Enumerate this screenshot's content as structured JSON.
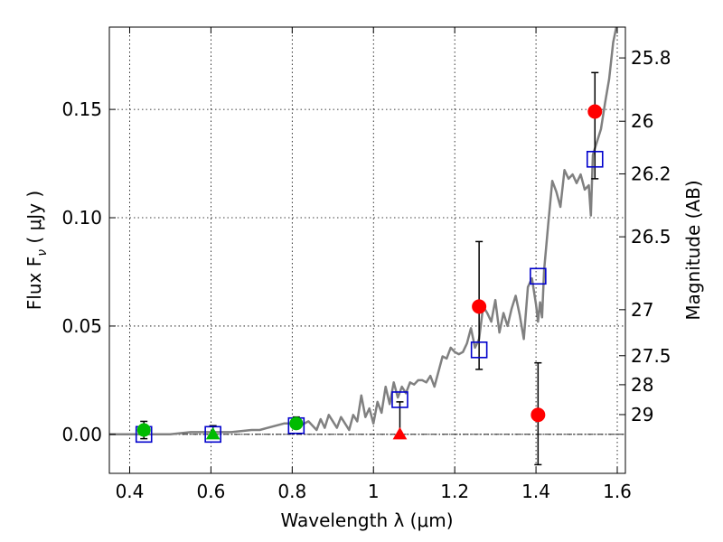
{
  "chart_data": {
    "type": "scatter",
    "xlabel": "Wavelength  λ (μm)",
    "ylabel": "Flux  F",
    "ylabel_sub": "ν",
    "ylabel_unit": " ( μJy )",
    "y2label": "Magnitude (AB)",
    "xlim": [
      0.35,
      1.62
    ],
    "ylim": [
      -0.018,
      0.188
    ],
    "grid": true,
    "x_ticks": [
      {
        "value": 0.4,
        "label": "0.4"
      },
      {
        "value": 0.6,
        "label": "0.6"
      },
      {
        "value": 0.8,
        "label": "0.8"
      },
      {
        "value": 1.0,
        "label": "1"
      },
      {
        "value": 1.2,
        "label": "1.2"
      },
      {
        "value": 1.4,
        "label": "1.4"
      },
      {
        "value": 1.6,
        "label": "1.6"
      }
    ],
    "y_ticks": [
      {
        "value": 0.0,
        "label": "0.00"
      },
      {
        "value": 0.05,
        "label": "0.05"
      },
      {
        "value": 0.1,
        "label": "0.10"
      },
      {
        "value": 0.15,
        "label": "0.15"
      }
    ],
    "y2_ticks": [
      {
        "label": "25.8",
        "mag": 25.8
      },
      {
        "label": "26",
        "mag": 26.0
      },
      {
        "label": "26.2",
        "mag": 26.2
      },
      {
        "label": "26.5",
        "mag": 26.5
      },
      {
        "label": "27",
        "mag": 27.0
      },
      {
        "label": "27.5",
        "mag": 27.5
      },
      {
        "label": "28",
        "mag": 28.0
      },
      {
        "label": "29",
        "mag": 29.0
      }
    ],
    "colors": {
      "model": "#808080",
      "observed": "#ff0000",
      "optical": "#00bb00",
      "synthetic": "#0000cc",
      "errorbar": "#000000"
    },
    "model_spectrum": {
      "x": [
        0.35,
        0.4,
        0.45,
        0.5,
        0.55,
        0.6,
        0.65,
        0.7,
        0.72,
        0.74,
        0.76,
        0.78,
        0.8,
        0.82,
        0.84,
        0.86,
        0.87,
        0.88,
        0.89,
        0.9,
        0.91,
        0.92,
        0.93,
        0.94,
        0.95,
        0.96,
        0.97,
        0.98,
        0.99,
        1.0,
        1.01,
        1.02,
        1.03,
        1.04,
        1.05,
        1.06,
        1.07,
        1.08,
        1.09,
        1.1,
        1.11,
        1.12,
        1.13,
        1.14,
        1.15,
        1.16,
        1.17,
        1.18,
        1.19,
        1.2,
        1.21,
        1.22,
        1.23,
        1.24,
        1.25,
        1.26,
        1.27,
        1.28,
        1.29,
        1.3,
        1.31,
        1.32,
        1.33,
        1.34,
        1.35,
        1.36,
        1.37,
        1.38,
        1.39,
        1.4,
        1.405,
        1.41,
        1.415,
        1.42,
        1.43,
        1.44,
        1.45,
        1.46,
        1.47,
        1.48,
        1.49,
        1.5,
        1.51,
        1.52,
        1.53,
        1.535,
        1.54,
        1.55,
        1.56,
        1.57,
        1.58,
        1.59,
        1.6
      ],
      "y": [
        0.0,
        0.0,
        0.0,
        0.0,
        0.001,
        0.001,
        0.001,
        0.002,
        0.002,
        0.003,
        0.004,
        0.005,
        0.005,
        0.004,
        0.006,
        0.002,
        0.007,
        0.003,
        0.009,
        0.006,
        0.003,
        0.008,
        0.005,
        0.002,
        0.009,
        0.006,
        0.018,
        0.008,
        0.012,
        0.005,
        0.015,
        0.01,
        0.022,
        0.014,
        0.024,
        0.017,
        0.022,
        0.019,
        0.024,
        0.023,
        0.025,
        0.025,
        0.024,
        0.027,
        0.022,
        0.029,
        0.036,
        0.035,
        0.04,
        0.038,
        0.037,
        0.038,
        0.042,
        0.049,
        0.04,
        0.044,
        0.059,
        0.056,
        0.052,
        0.062,
        0.047,
        0.056,
        0.05,
        0.058,
        0.064,
        0.055,
        0.044,
        0.068,
        0.072,
        0.06,
        0.052,
        0.061,
        0.054,
        0.076,
        0.097,
        0.117,
        0.112,
        0.105,
        0.122,
        0.118,
        0.12,
        0.116,
        0.12,
        0.113,
        0.115,
        0.101,
        0.129,
        0.135,
        0.141,
        0.153,
        0.164,
        0.181,
        0.19
      ]
    },
    "observed_detections": [
      {
        "x": 1.26,
        "y": 0.059,
        "yerr_low": 0.029,
        "yerr_high": 0.03
      },
      {
        "x": 1.405,
        "y": 0.009,
        "yerr_low": 0.023,
        "yerr_high": 0.024
      },
      {
        "x": 1.545,
        "y": 0.149,
        "yerr_low": 0.031,
        "yerr_high": 0.018
      }
    ],
    "observed_upper_limits": [
      {
        "x": 1.065,
        "y": 0.0,
        "yerr_high": 0.015
      }
    ],
    "optical_detections": [
      {
        "x": 0.435,
        "y": 0.002,
        "yerr_low": 0.004,
        "yerr_high": 0.004
      },
      {
        "x": 0.81,
        "y": 0.005,
        "yerr_low": 0.002,
        "yerr_high": 0.003
      }
    ],
    "optical_upper_limits": [
      {
        "x": 0.605,
        "y": 0.0,
        "yerr_high": 0.004
      }
    ],
    "synthetic_photometry": [
      {
        "x": 0.435,
        "y": 0.0
      },
      {
        "x": 0.605,
        "y": 0.0
      },
      {
        "x": 0.81,
        "y": 0.004
      },
      {
        "x": 1.065,
        "y": 0.016
      },
      {
        "x": 1.26,
        "y": 0.039
      },
      {
        "x": 1.405,
        "y": 0.073
      },
      {
        "x": 1.545,
        "y": 0.127
      }
    ]
  }
}
